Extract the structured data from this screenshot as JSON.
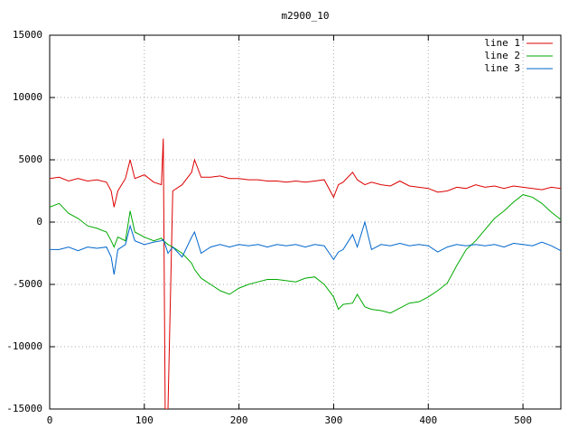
{
  "chart_data": {
    "type": "line",
    "title": "m2900_10",
    "x": [
      0,
      10,
      20,
      30,
      40,
      50,
      60,
      65,
      68,
      72,
      80,
      85,
      90,
      100,
      110,
      118,
      120,
      122,
      125,
      130,
      140,
      150,
      153,
      160,
      170,
      180,
      190,
      200,
      210,
      220,
      230,
      240,
      250,
      260,
      270,
      280,
      290,
      300,
      305,
      310,
      320,
      325,
      333,
      340,
      350,
      360,
      370,
      380,
      390,
      400,
      410,
      420,
      430,
      440,
      450,
      460,
      470,
      480,
      490,
      500,
      510,
      520,
      530,
      540
    ],
    "series": [
      {
        "name": "line 1",
        "color": "#dd0000",
        "values": [
          3500,
          3600,
          3300,
          3500,
          3300,
          3400,
          3200,
          2500,
          1200,
          2500,
          3500,
          5000,
          3500,
          3800,
          3200,
          3000,
          6700,
          -15000,
          -15000,
          2500,
          3000,
          4000,
          5000,
          3600,
          3600,
          3700,
          3500,
          3500,
          3400,
          3400,
          3300,
          3300,
          3200,
          3300,
          3200,
          3300,
          3400,
          2000,
          3000,
          3200,
          4000,
          3400,
          3000,
          3200,
          3000,
          2900,
          3300,
          2900,
          2800,
          2700,
          2400,
          2500,
          2800,
          2700,
          3000,
          2800,
          2900,
          2700,
          2900,
          2800,
          2700,
          2600,
          2800,
          2700
        ]
      },
      {
        "name": "line 2",
        "color": "#00aa00",
        "values": [
          1200,
          1500,
          700,
          300,
          -300,
          -500,
          -800,
          -1500,
          -2000,
          -1200,
          -1500,
          900,
          -800,
          -1200,
          -1500,
          -1300,
          -1500,
          -1600,
          -1800,
          -2000,
          -2500,
          -3300,
          -3800,
          -4500,
          -5000,
          -5500,
          -5800,
          -5300,
          -5000,
          -4800,
          -4600,
          -4600,
          -4700,
          -4800,
          -4500,
          -4400,
          -5000,
          -6000,
          -7000,
          -6600,
          -6500,
          -5800,
          -6800,
          -7000,
          -7100,
          -7300,
          -6900,
          -6500,
          -6400,
          -6000,
          -5500,
          -4900,
          -3500,
          -2200,
          -1500,
          -600,
          300,
          900,
          1600,
          2200,
          2000,
          1500,
          800,
          200
        ]
      },
      {
        "name": "line 3",
        "color": "#0066cc",
        "values": [
          -2200,
          -2200,
          -2000,
          -2300,
          -2000,
          -2100,
          -2000,
          -2800,
          -4200,
          -2200,
          -1800,
          -300,
          -1500,
          -1800,
          -1600,
          -1500,
          -1400,
          -1800,
          -2500,
          -2000,
          -2800,
          -1200,
          -800,
          -2500,
          -2000,
          -1800,
          -2000,
          -1800,
          -1900,
          -1800,
          -2000,
          -1800,
          -1900,
          -1800,
          -2000,
          -1800,
          -1900,
          -3000,
          -2400,
          -2200,
          -1000,
          -2000,
          0,
          -2200,
          -1800,
          -1900,
          -1700,
          -1900,
          -1800,
          -1900,
          -2400,
          -2000,
          -1800,
          -1900,
          -1800,
          -1900,
          -1800,
          -2000,
          -1700,
          -1800,
          -1900,
          -1600,
          -1900,
          -2300
        ]
      }
    ],
    "xlim": [
      0,
      540
    ],
    "ylim": [
      -15000,
      15000
    ],
    "xticks": [
      0,
      100,
      200,
      300,
      400,
      500
    ],
    "yticks": [
      -15000,
      -10000,
      -5000,
      0,
      5000,
      10000,
      15000
    ],
    "grid": true,
    "legend": "top-right"
  }
}
